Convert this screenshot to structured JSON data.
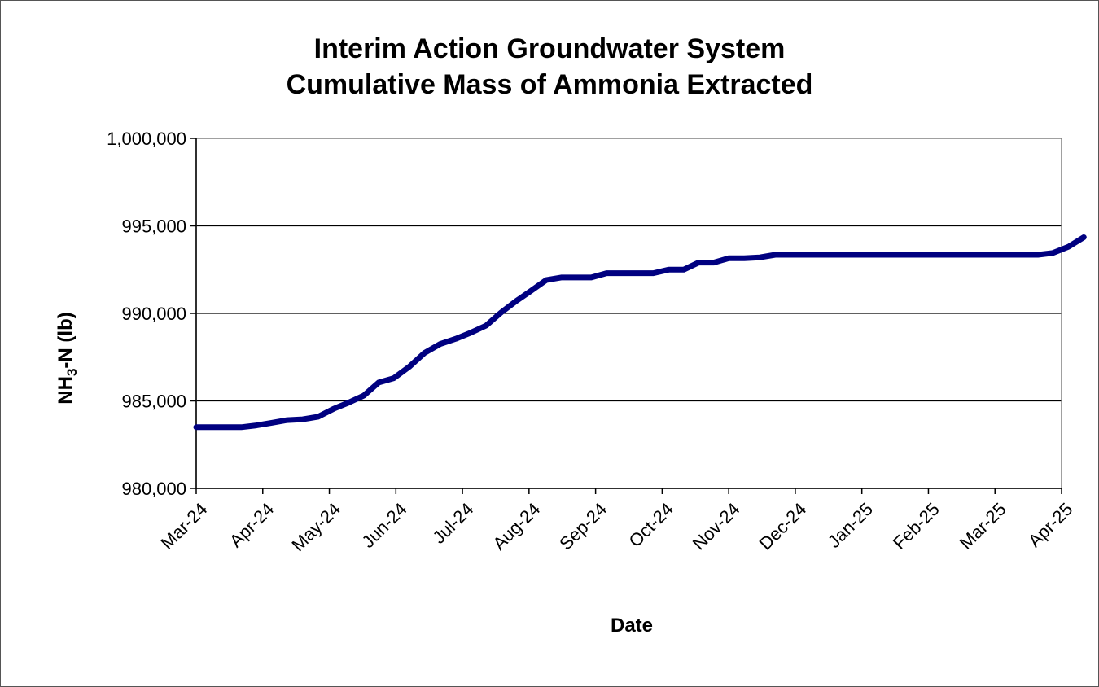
{
  "chart_data": {
    "type": "line",
    "title_line1": "Interim  Action Groundwater System",
    "title_line2": "Cumulative Mass of Ammonia  Extracted",
    "xlabel": "Date",
    "ylabel_main": "NH",
    "ylabel_sub": "3",
    "ylabel_rest": "-N  (lb)",
    "ylim": [
      980000,
      1000000
    ],
    "yticks": [
      980000,
      985000,
      990000,
      995000,
      1000000
    ],
    "ytick_labels": [
      "980,000",
      "985,000",
      "990,000",
      "995,000",
      "1,000,000"
    ],
    "xticks": [
      "Mar-24",
      "Apr-24",
      "May-24",
      "Jun-24",
      "Jul-24",
      "Aug-24",
      "Sep-24",
      "Oct-24",
      "Nov-24",
      "Dec-24",
      "Jan-25",
      "Feb-25",
      "Mar-25",
      "Apr-25"
    ],
    "grid": "horizontal",
    "line_color": "#000080",
    "series": [
      {
        "x": [
          "2024-03-01",
          "2024-03-08",
          "2024-03-15",
          "2024-03-22",
          "2024-03-29",
          "2024-04-05",
          "2024-04-12",
          "2024-04-19",
          "2024-04-26",
          "2024-05-03",
          "2024-05-10",
          "2024-05-17",
          "2024-05-24",
          "2024-05-31",
          "2024-06-07",
          "2024-06-14",
          "2024-06-21",
          "2024-06-28",
          "2024-07-05",
          "2024-07-12",
          "2024-07-19",
          "2024-07-26",
          "2024-08-02",
          "2024-08-09",
          "2024-08-16",
          "2024-08-23",
          "2024-08-30",
          "2024-09-06",
          "2024-09-13",
          "2024-09-20",
          "2024-09-27",
          "2024-10-04",
          "2024-10-11",
          "2024-10-18",
          "2024-10-25",
          "2024-11-01",
          "2024-11-08",
          "2024-11-15",
          "2024-11-22",
          "2024-11-29",
          "2024-12-06",
          "2024-12-20",
          "2025-01-03",
          "2025-01-17",
          "2025-01-31",
          "2025-02-14",
          "2025-02-28",
          "2025-03-14",
          "2025-03-21",
          "2025-03-28",
          "2025-04-04",
          "2025-04-11"
        ],
        "values": [
          983500,
          983500,
          983500,
          983500,
          983600,
          983750,
          983900,
          983950,
          984100,
          984550,
          984900,
          985300,
          986050,
          986300,
          986950,
          987750,
          988250,
          988550,
          988900,
          989300,
          990050,
          990700,
          991300,
          991900,
          992050,
          992050,
          992050,
          992300,
          992300,
          992300,
          992300,
          992500,
          992500,
          992900,
          992900,
          993150,
          993150,
          993200,
          993350,
          993350,
          993350,
          993350,
          993350,
          993350,
          993350,
          993350,
          993350,
          993350,
          993350,
          993450,
          993800,
          994350
        ]
      }
    ]
  }
}
